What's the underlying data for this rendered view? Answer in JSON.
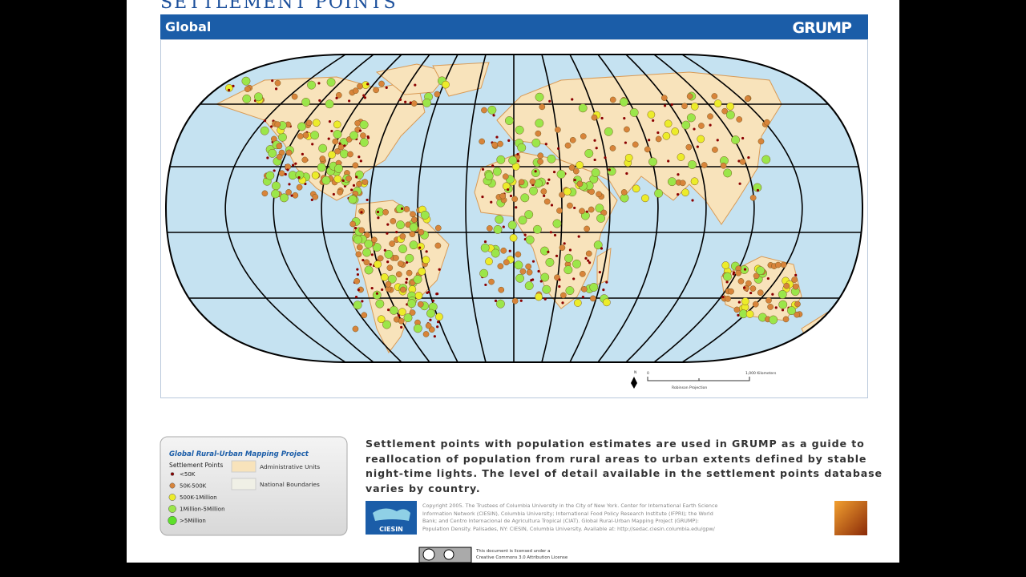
{
  "slide": {
    "title": "SETTLEMENT POINTS",
    "header": {
      "region": "Global",
      "logo": "GRUMP"
    },
    "map": {
      "scale_start": "0",
      "scale_end": "1,000 Kilometers",
      "projection": "Robinson Projection",
      "north": "N"
    },
    "legend": {
      "title": "Global Rural-Urban Mapping Project",
      "points_heading": "Settlement Points",
      "classes": [
        "<50K",
        "50K-500K",
        "500K-1Million",
        "1Million-5Million",
        ">5Million"
      ],
      "areas": [
        "Administrative Units",
        "National Boundaries"
      ]
    },
    "description": [
      "Settlement points with population estimates are used in GRUMP as a guide to",
      "reallocation of population from rural areas to urban extents defined by stable",
      "night-time lights. The level of detail available in the settlement points database",
      "varies by country."
    ],
    "credit": {
      "logo": "CIESIN",
      "lines": [
        "Copyright 2005. The Trustees of Columbia University in the City of New York. Center for International Earth Science",
        "Information Network (CIESIN), Columbia University; International Food Policy Research Institute (IFPRI); the World",
        "Bank; and Centro Internacional de Agricultura Tropical (CIAT). Global Rural-Urban Mapping Project (GRUMP):",
        "Population Density. Palisades, NY: CIESIN, Columbia University. Available at: http://sedac.ciesin.columbia.edu/gpw/"
      ]
    },
    "license": [
      "This document is licensed under a",
      "Creative Commons 3.0 Attribution License"
    ]
  }
}
